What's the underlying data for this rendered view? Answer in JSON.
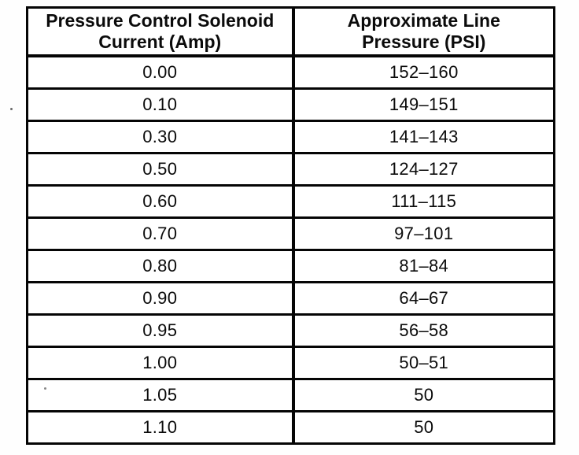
{
  "table": {
    "headers": {
      "current": {
        "line1": "Pressure Control Solenoid",
        "line2": "Current (Amp)"
      },
      "pressure": {
        "line1": "Approximate Line",
        "line2": "Pressure (PSI)"
      }
    },
    "rows": [
      {
        "current": "0.00",
        "pressure": "152–160"
      },
      {
        "current": "0.10",
        "pressure": "149–151"
      },
      {
        "current": "0.30",
        "pressure": "141–143"
      },
      {
        "current": "0.50",
        "pressure": "124–127"
      },
      {
        "current": "0.60",
        "pressure": "111–115"
      },
      {
        "current": "0.70",
        "pressure": "97–101"
      },
      {
        "current": "0.80",
        "pressure": "81–84"
      },
      {
        "current": "0.90",
        "pressure": "64–67"
      },
      {
        "current": "0.95",
        "pressure": "56–58"
      },
      {
        "current": "1.00",
        "pressure": "50–51"
      },
      {
        "current": "1.05",
        "pressure": "50"
      },
      {
        "current": "1.10",
        "pressure": "50"
      }
    ],
    "colors": {
      "border": "#050505",
      "text": "#0b0b0b",
      "background": "#ffffff"
    }
  }
}
